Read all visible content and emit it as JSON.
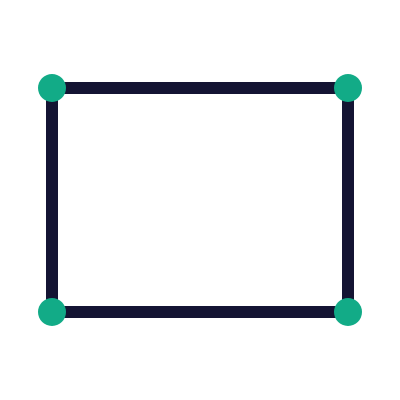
{
  "graphic": {
    "description_icon": "rectangle-vertex-icon",
    "colors": {
      "background": "#ffffff",
      "edge": "#141433",
      "vertex": "#12ab87"
    },
    "vertices": [
      {
        "name": "vertex-top-left"
      },
      {
        "name": "vertex-top-right"
      },
      {
        "name": "vertex-bottom-right"
      },
      {
        "name": "vertex-bottom-left"
      }
    ],
    "edges": [
      {
        "name": "edge-top"
      },
      {
        "name": "edge-right"
      },
      {
        "name": "edge-bottom"
      },
      {
        "name": "edge-left"
      }
    ]
  }
}
